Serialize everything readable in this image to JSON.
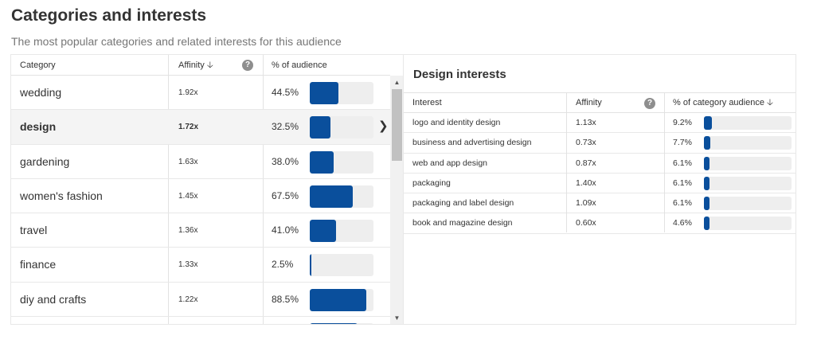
{
  "header": {
    "title": "Categories and interests",
    "subtitle": "The most popular categories and related interests for this audience"
  },
  "categories_table": {
    "columns": {
      "category": "Category",
      "affinity": "Affinity",
      "audience": "% of audience"
    },
    "sort_icon": "arrow-down-icon",
    "help_icon": "question-icon",
    "selected_index": 1,
    "rows": [
      {
        "category": "wedding",
        "affinity": "1.92x",
        "audience": "44.5%",
        "fill": 0.445
      },
      {
        "category": "design",
        "affinity": "1.72x",
        "audience": "32.5%",
        "fill": 0.325
      },
      {
        "category": "gardening",
        "affinity": "1.63x",
        "audience": "38.0%",
        "fill": 0.38
      },
      {
        "category": "women's fashion",
        "affinity": "1.45x",
        "audience": "67.5%",
        "fill": 0.675
      },
      {
        "category": "travel",
        "affinity": "1.36x",
        "audience": "41.0%",
        "fill": 0.41
      },
      {
        "category": "finance",
        "affinity": "1.33x",
        "audience": "2.5%",
        "fill": 0.025
      },
      {
        "category": "diy and crafts",
        "affinity": "1.22x",
        "audience": "88.5%",
        "fill": 0.885
      },
      {
        "category": "",
        "affinity": "",
        "audience": "",
        "fill": 0.75
      }
    ]
  },
  "interests_panel": {
    "title": "Design interests",
    "columns": {
      "interest": "Interest",
      "affinity": "Affinity",
      "audience": "% of category audience"
    },
    "rows": [
      {
        "interest": "logo and identity design",
        "affinity": "1.13x",
        "audience": "9.2%",
        "fill": 0.092
      },
      {
        "interest": "business and advertising design",
        "affinity": "0.73x",
        "audience": "7.7%",
        "fill": 0.077
      },
      {
        "interest": "web and app design",
        "affinity": "0.87x",
        "audience": "6.1%",
        "fill": 0.061
      },
      {
        "interest": "packaging",
        "affinity": "1.40x",
        "audience": "6.1%",
        "fill": 0.061
      },
      {
        "interest": "packaging and label design",
        "affinity": "1.09x",
        "audience": "6.1%",
        "fill": 0.061
      },
      {
        "interest": "book and magazine design",
        "affinity": "0.60x",
        "audience": "4.6%",
        "fill": 0.046
      }
    ]
  },
  "colors": {
    "bar": "#0a4f9c",
    "bar_track": "#eeeeee"
  }
}
